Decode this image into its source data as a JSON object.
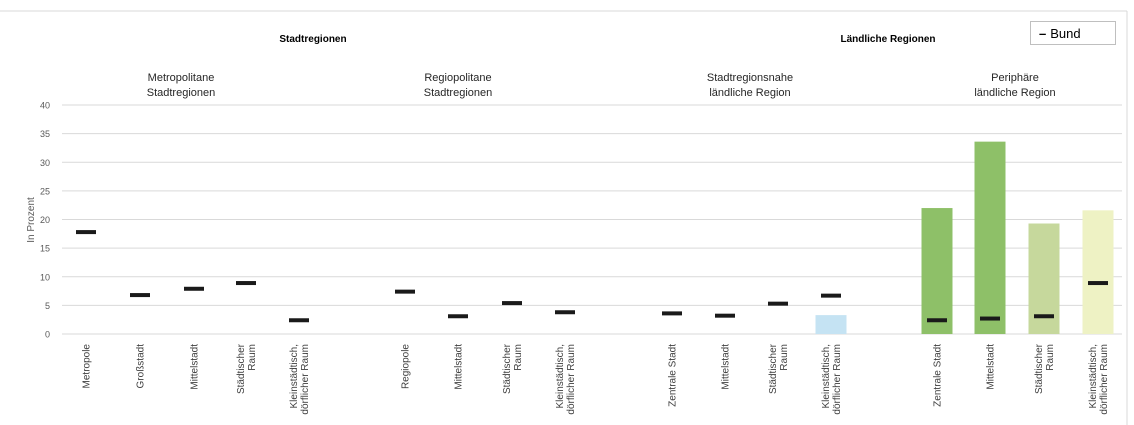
{
  "colors": {
    "bund_marker": "#1a1a1a",
    "light_blue": "#c5e3f3",
    "green_dark": "#8ec068",
    "green_mid": "#c6d89c",
    "green_pale": "#eef2c4",
    "grid": "#d9d9d9"
  },
  "chart_data": {
    "type": "bar",
    "ylabel": "In Prozent",
    "ylim": [
      0,
      40
    ],
    "yticks": [
      "0",
      "5",
      "10",
      "15",
      "20",
      "25",
      "30",
      "35",
      "40"
    ],
    "grid": true,
    "legend": {
      "position": "top-right",
      "entries": [
        {
          "symbol": "–",
          "label": "Bund"
        }
      ]
    },
    "top_groups": [
      {
        "label": "Stadtregionen"
      },
      {
        "label": "Ländliche Regionen"
      }
    ],
    "subgroups": [
      {
        "title": [
          "Metropolitane",
          "Stadtregionen"
        ],
        "categories": [
          {
            "label": [
              "Metropole"
            ],
            "bar": null,
            "bund": 17.8
          },
          {
            "label": [
              "Großstadt"
            ],
            "bar": null,
            "bund": 6.8
          },
          {
            "label": [
              "Mittelstadt"
            ],
            "bar": null,
            "bund": 7.9
          },
          {
            "label": [
              "Städtischer",
              "Raum"
            ],
            "bar": null,
            "bund": 8.9
          },
          {
            "label": [
              "Kleinstädtisch,",
              "dörflicher Raum"
            ],
            "bar": null,
            "bund": 2.4
          }
        ]
      },
      {
        "title": [
          "Regiopolitane",
          "Stadtregionen"
        ],
        "categories": [
          {
            "label": [
              "Regiopole"
            ],
            "bar": null,
            "bund": 7.4
          },
          {
            "label": [
              "Mittelstadt"
            ],
            "bar": null,
            "bund": 3.1
          },
          {
            "label": [
              "Städtischer",
              "Raum"
            ],
            "bar": null,
            "bund": 5.4
          },
          {
            "label": [
              "Kleinstädtisch,",
              "dörflicher Raum"
            ],
            "bar": null,
            "bund": 3.8
          }
        ]
      },
      {
        "title": [
          "Stadtregionsnahe",
          "ländliche Region"
        ],
        "categories": [
          {
            "label": [
              "Zentrale Stadt"
            ],
            "bar": null,
            "bund": 3.6
          },
          {
            "label": [
              "Mittelstadt"
            ],
            "bar": null,
            "bund": 3.2
          },
          {
            "label": [
              "Städtischer",
              "Raum"
            ],
            "bar": null,
            "bund": 5.3
          },
          {
            "label": [
              "Kleinstädtisch,",
              "dörflicher Raum"
            ],
            "bar": 3.3,
            "bar_color": "light_blue",
            "bund": 6.7
          }
        ]
      },
      {
        "title": [
          "Periphäre",
          "ländliche Region"
        ],
        "categories": [
          {
            "label": [
              "Zentrale Stadt"
            ],
            "bar": 22.0,
            "bar_color": "green_dark",
            "bund": 2.4
          },
          {
            "label": [
              "Mittelstadt"
            ],
            "bar": 33.6,
            "bar_color": "green_dark",
            "bund": 2.7
          },
          {
            "label": [
              "Städtischer",
              "Raum"
            ],
            "bar": 19.3,
            "bar_color": "green_mid",
            "bund": 3.1
          },
          {
            "label": [
              "Kleinstädtisch,",
              "dörflicher Raum"
            ],
            "bar": 21.6,
            "bar_color": "green_pale",
            "bund": 8.9
          }
        ]
      }
    ]
  }
}
